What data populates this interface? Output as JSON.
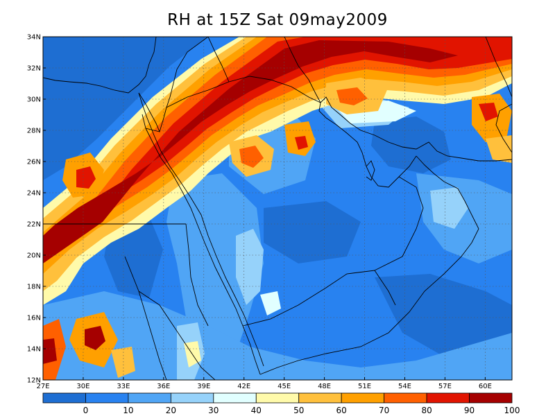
{
  "title": "RH at 15Z Sat 09may2009",
  "map": {
    "lon_range": [
      27,
      62
    ],
    "lat_range": [
      12,
      34
    ],
    "lon_ticks": [
      {
        "value": 27,
        "label": "27E"
      },
      {
        "value": 30,
        "label": "30E"
      },
      {
        "value": 33,
        "label": "33E"
      },
      {
        "value": 36,
        "label": "36E"
      },
      {
        "value": 39,
        "label": "39E"
      },
      {
        "value": 42,
        "label": "42E"
      },
      {
        "value": 45,
        "label": "45E"
      },
      {
        "value": 48,
        "label": "48E"
      },
      {
        "value": 51,
        "label": "51E"
      },
      {
        "value": 54,
        "label": "54E"
      },
      {
        "value": 57,
        "label": "57E"
      },
      {
        "value": 60,
        "label": "60E"
      }
    ],
    "lat_ticks": [
      {
        "value": 12,
        "label": "12N"
      },
      {
        "value": 14,
        "label": "14N"
      },
      {
        "value": 16,
        "label": "16N"
      },
      {
        "value": 18,
        "label": "18N"
      },
      {
        "value": 20,
        "label": "20N"
      },
      {
        "value": 22,
        "label": "22N"
      },
      {
        "value": 24,
        "label": "24N"
      },
      {
        "value": 26,
        "label": "26N"
      },
      {
        "value": 28,
        "label": "28N"
      },
      {
        "value": 30,
        "label": "30N"
      },
      {
        "value": 32,
        "label": "32N"
      },
      {
        "value": 34,
        "label": "34N"
      }
    ]
  },
  "colorbar": {
    "colors": [
      "#1e6ed2",
      "#2882f0",
      "#50a5f5",
      "#96d2fa",
      "#e1ffff",
      "#fffaaa",
      "#ffc03c",
      "#ffa000",
      "#ff6000",
      "#e11400",
      "#a50000"
    ],
    "labels": [
      "0",
      "10",
      "20",
      "30",
      "40",
      "50",
      "60",
      "70",
      "80",
      "90",
      "100"
    ]
  },
  "contour_colors": {
    "blue_dark": "#1e6ed2",
    "blue": "#2882f0",
    "blue_light": "#50a5f5",
    "sky": "#96d2fa",
    "cyan_pale": "#e1ffff",
    "yellow": "#fffaaa",
    "orange_light": "#ffc03c",
    "orange": "#ffa000",
    "orange_dark": "#ff6000",
    "red": "#e11400",
    "maroon": "#a50000"
  }
}
